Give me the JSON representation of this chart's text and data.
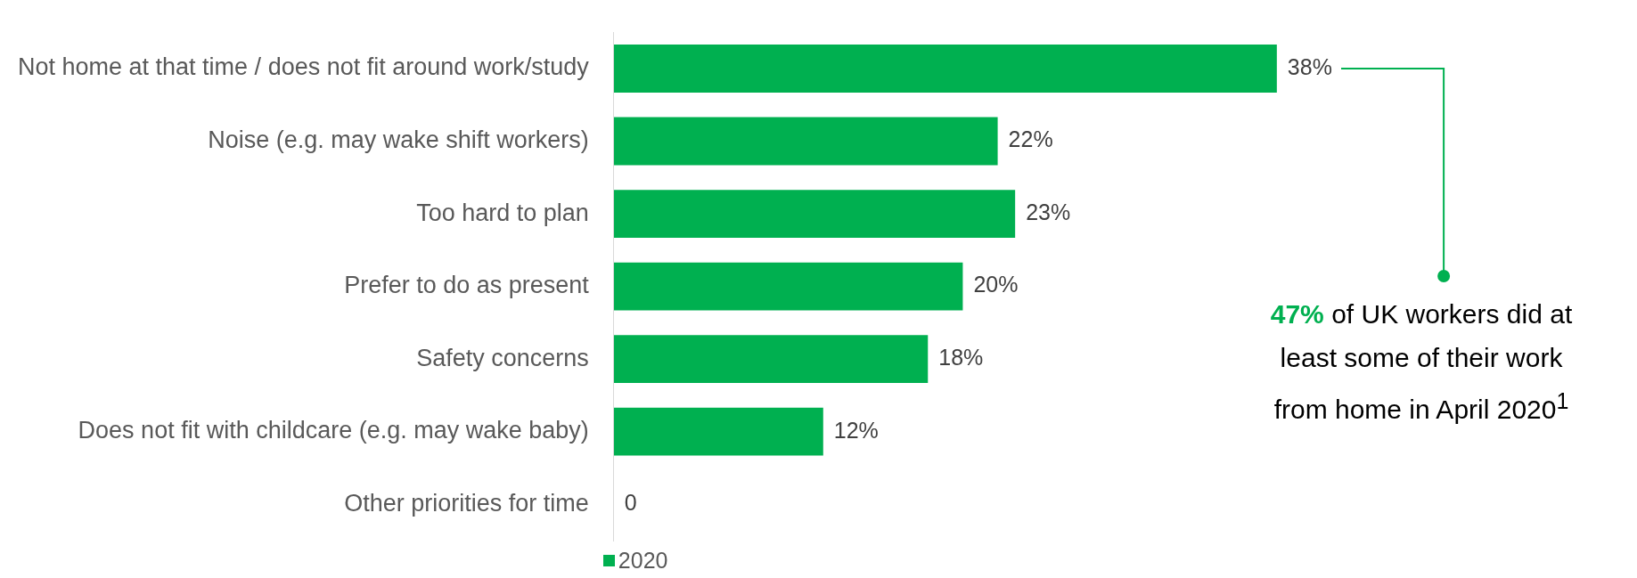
{
  "chart_data": {
    "type": "bar",
    "orientation": "horizontal",
    "categories": [
      "Not home at that time / does not fit around work/study",
      "Noise (e.g. may wake shift workers)",
      "Too hard to plan",
      "Prefer to do as present",
      "Safety concerns",
      "Does not fit with childcare (e.g. may wake baby)",
      "Other priorities for time"
    ],
    "series": [
      {
        "name": "2020",
        "color": "#00b050",
        "values": [
          38,
          22,
          23,
          20,
          18,
          12,
          0
        ],
        "value_labels": [
          "38%",
          "22%",
          "23%",
          "20%",
          "18%",
          "12%",
          "0"
        ]
      }
    ],
    "tick_labels": "y",
    "legend": "bottom",
    "annotations": [
      "47% of UK workers did at least some of their work from home in April 2020$^{1}$"
    ]
  }
}
